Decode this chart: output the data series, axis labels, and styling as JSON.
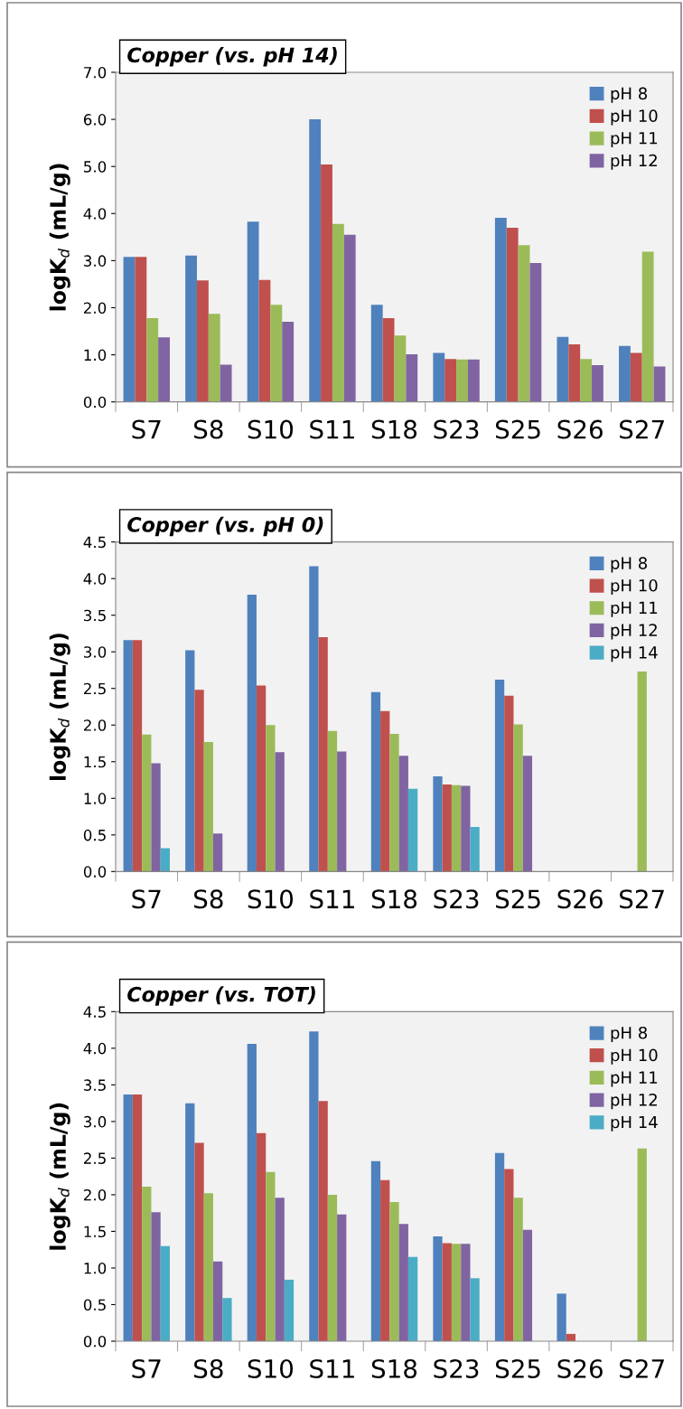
{
  "chart_data": [
    {
      "type": "bar",
      "title": "Copper (vs. pH 14)",
      "ylabel": "logK$_{d}$ (mL/g)",
      "categories": [
        "S7",
        "S8",
        "S10",
        "S11",
        "S18",
        "S23",
        "S25",
        "S26",
        "S27"
      ],
      "ylim": [
        0,
        7
      ],
      "yticks": [
        {
          "value": 0,
          "label": "0.0"
        },
        {
          "value": 1,
          "label": "1.0"
        },
        {
          "value": 2,
          "label": "2.0"
        },
        {
          "value": 3,
          "label": "3.0"
        },
        {
          "value": 4,
          "label": "4.0"
        },
        {
          "value": 5,
          "label": "5.0"
        },
        {
          "value": 6,
          "label": "6.0"
        },
        {
          "value": 7,
          "label": "7.0"
        }
      ],
      "grid": false,
      "legend": "top right",
      "series": [
        {
          "name": "pH 8",
          "color": "#4f81bd",
          "values": [
            3.08,
            3.11,
            3.83,
            6.0,
            2.06,
            1.04,
            3.91,
            1.38,
            1.19
          ]
        },
        {
          "name": "pH 10",
          "color": "#c0504d",
          "values": [
            3.08,
            2.58,
            2.59,
            5.04,
            1.78,
            0.91,
            3.7,
            1.22,
            1.04
          ]
        },
        {
          "name": "pH 11",
          "color": "#9bbb59",
          "values": [
            1.78,
            1.87,
            2.06,
            3.78,
            1.41,
            0.9,
            3.33,
            0.91,
            3.19
          ]
        },
        {
          "name": "pH 12",
          "color": "#8064a2",
          "values": [
            1.37,
            0.79,
            1.7,
            3.55,
            1.01,
            0.9,
            2.95,
            0.78,
            0.75
          ]
        }
      ]
    },
    {
      "type": "bar",
      "title": "Copper (vs. pH 0)",
      "ylabel": "logK$_{d}$ (mL/g)",
      "categories": [
        "S7",
        "S8",
        "S10",
        "S11",
        "S18",
        "S23",
        "S25",
        "S26",
        "S27"
      ],
      "ylim": [
        0,
        4.5
      ],
      "yticks": [
        {
          "value": 0,
          "label": "0.0"
        },
        0.5,
        {
          "value": 1,
          "label": "1.0"
        },
        1.5,
        {
          "value": 2,
          "label": "2.0"
        },
        2.5,
        {
          "value": 3,
          "label": "3.0"
        },
        3.5,
        {
          "value": 4,
          "label": "4.0"
        },
        4.5
      ],
      "grid": false,
      "legend": "top right",
      "series": [
        {
          "name": "pH 8",
          "color": "#4f81bd",
          "values": [
            3.16,
            3.02,
            3.78,
            4.17,
            2.45,
            1.3,
            2.62,
            null,
            null
          ]
        },
        {
          "name": "pH 10",
          "color": "#c0504d",
          "values": [
            3.16,
            2.48,
            2.54,
            3.2,
            2.19,
            1.19,
            2.4,
            null,
            null
          ]
        },
        {
          "name": "pH 11",
          "color": "#9bbb59",
          "values": [
            1.87,
            1.77,
            2.0,
            1.92,
            1.88,
            1.18,
            2.01,
            null,
            2.73
          ]
        },
        {
          "name": "pH 12",
          "color": "#8064a2",
          "values": [
            1.48,
            0.52,
            1.63,
            1.64,
            1.58,
            1.17,
            1.58,
            null,
            null
          ]
        },
        {
          "name": "pH 14",
          "color": "#4bacc6",
          "values": [
            0.32,
            null,
            null,
            null,
            1.13,
            0.61,
            null,
            null,
            null
          ]
        }
      ]
    },
    {
      "type": "bar",
      "title": "Copper (vs. TOT)",
      "ylabel": "logK$_{d}$ (mL/g)",
      "categories": [
        "S7",
        "S8",
        "S10",
        "S11",
        "S18",
        "S23",
        "S25",
        "S26",
        "S27"
      ],
      "ylim": [
        0,
        4.5
      ],
      "yticks": [
        {
          "value": 0,
          "label": "0.0"
        },
        0.5,
        {
          "value": 1,
          "label": "1.0"
        },
        1.5,
        {
          "value": 2,
          "label": "2.0"
        },
        2.5,
        {
          "value": 3,
          "label": "3.0"
        },
        3.5,
        {
          "value": 4,
          "label": "4.0"
        },
        4.5
      ],
      "grid": false,
      "legend": "top right",
      "series": [
        {
          "name": "pH 8",
          "color": "#4f81bd",
          "values": [
            3.37,
            3.25,
            4.06,
            4.23,
            2.46,
            1.43,
            2.57,
            0.65,
            null
          ]
        },
        {
          "name": "pH 10",
          "color": "#c0504d",
          "values": [
            3.37,
            2.71,
            2.84,
            3.28,
            2.2,
            1.34,
            2.35,
            0.1,
            null
          ]
        },
        {
          "name": "pH 11",
          "color": "#9bbb59",
          "values": [
            2.11,
            2.02,
            2.31,
            2.0,
            1.9,
            1.33,
            1.96,
            null,
            2.63
          ]
        },
        {
          "name": "pH 12",
          "color": "#8064a2",
          "values": [
            1.76,
            1.09,
            1.96,
            1.73,
            1.6,
            1.33,
            1.52,
            null,
            null
          ]
        },
        {
          "name": "pH 14",
          "color": "#4bacc6",
          "values": [
            1.3,
            0.59,
            0.84,
            null,
            1.15,
            0.86,
            null,
            null,
            null
          ]
        }
      ]
    }
  ]
}
